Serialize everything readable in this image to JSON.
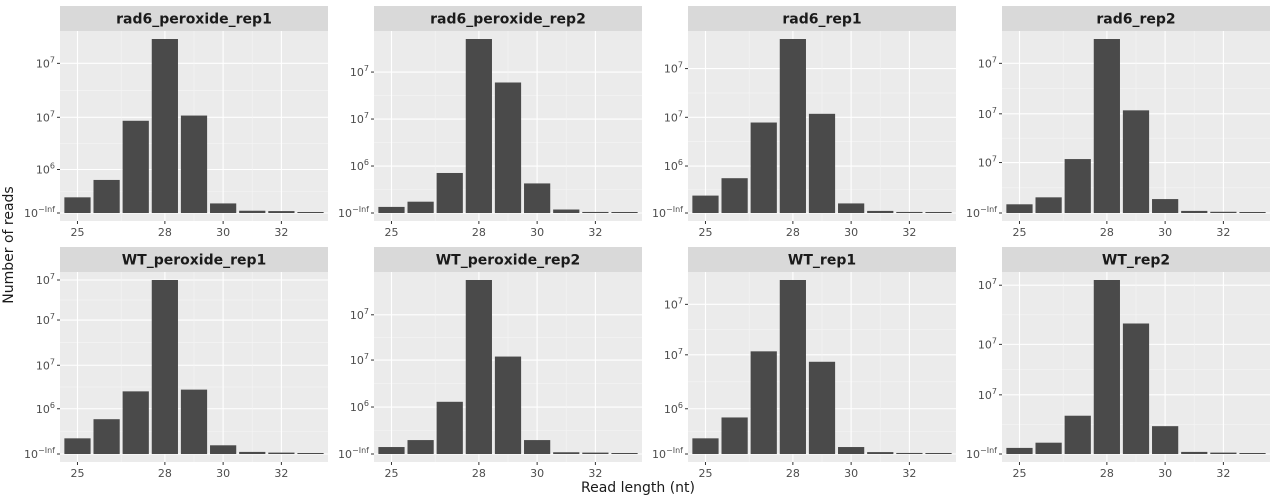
{
  "xlabel": "Read length (nt)",
  "ylabel": "Number of reads",
  "chart_data": {
    "type": "bar",
    "facet_layout": "2 rows x 4 columns",
    "x_categories": [
      25,
      26,
      27,
      28,
      29,
      30,
      31,
      32,
      33
    ],
    "x_ticks": [
      25,
      28,
      30,
      32
    ],
    "x_range": [
      24.4,
      33.6
    ],
    "y_scale": "log (tick labels as printed)",
    "bar_color": "#4a4a4a",
    "panel_background": "#ebebeb",
    "strip_background": "#d9d9d9",
    "grid": true,
    "panels": [
      {
        "title": "rad6_peroxide_rep1",
        "y_ticks": [
          {
            "label": "10^−Inf",
            "pos": 0.0
          },
          {
            "label": "10^6",
            "pos": 0.25
          },
          {
            "label": "10^7",
            "pos": 0.55
          },
          {
            "label": "10^7",
            "pos": 0.86
          }
        ],
        "values": [
          0.09,
          0.19,
          0.53,
          1.0,
          0.56,
          0.055,
          0.013,
          0.011,
          0.005
        ]
      },
      {
        "title": "rad6_peroxide_rep2",
        "y_ticks": [
          {
            "label": "10^−Inf",
            "pos": 0.0
          },
          {
            "label": "10^6",
            "pos": 0.27
          },
          {
            "label": "10^7",
            "pos": 0.54
          },
          {
            "label": "10^7",
            "pos": 0.81
          }
        ],
        "values": [
          0.035,
          0.065,
          0.23,
          1.0,
          0.75,
          0.17,
          0.02,
          0.006,
          0.004
        ]
      },
      {
        "title": "rad6_rep1",
        "y_ticks": [
          {
            "label": "10^−Inf",
            "pos": 0.0
          },
          {
            "label": "10^6",
            "pos": 0.27
          },
          {
            "label": "10^7",
            "pos": 0.55
          },
          {
            "label": "10^7",
            "pos": 0.83
          }
        ],
        "values": [
          0.1,
          0.2,
          0.52,
          1.0,
          0.57,
          0.055,
          0.012,
          0.006,
          0.004
        ]
      },
      {
        "title": "rad6_rep2",
        "y_ticks": [
          {
            "label": "10^−Inf",
            "pos": 0.0
          },
          {
            "label": "10^7",
            "pos": 0.29
          },
          {
            "label": "10^7",
            "pos": 0.57
          },
          {
            "label": "10^7",
            "pos": 0.86
          }
        ],
        "values": [
          0.05,
          0.09,
          0.31,
          1.0,
          0.59,
          0.08,
          0.012,
          0.007,
          0.005
        ]
      },
      {
        "title": "WT_peroxide_rep1",
        "y_ticks": [
          {
            "label": "10^−Inf",
            "pos": 0.0
          },
          {
            "label": "10^6",
            "pos": 0.26
          },
          {
            "label": "10^7",
            "pos": 0.51
          },
          {
            "label": "10^7",
            "pos": 0.77
          },
          {
            "label": "10^7",
            "pos": 1.0
          }
        ],
        "values": [
          0.09,
          0.2,
          0.36,
          1.0,
          0.37,
          0.05,
          0.012,
          0.008,
          0.005
        ]
      },
      {
        "title": "WT_peroxide_rep2",
        "y_ticks": [
          {
            "label": "10^−Inf",
            "pos": 0.0
          },
          {
            "label": "10^6",
            "pos": 0.27
          },
          {
            "label": "10^7",
            "pos": 0.54
          },
          {
            "label": "10^7",
            "pos": 0.8
          }
        ],
        "values": [
          0.04,
          0.08,
          0.3,
          1.0,
          0.56,
          0.08,
          0.01,
          0.008,
          0.005
        ]
      },
      {
        "title": "WT_rep1",
        "y_ticks": [
          {
            "label": "10^−Inf",
            "pos": 0.0
          },
          {
            "label": "10^6",
            "pos": 0.26
          },
          {
            "label": "10^7",
            "pos": 0.57
          },
          {
            "label": "10^7",
            "pos": 0.86
          }
        ],
        "values": [
          0.09,
          0.21,
          0.59,
          1.0,
          0.53,
          0.04,
          0.011,
          0.006,
          0.004
        ]
      },
      {
        "title": "WT_rep2",
        "y_ticks": [
          {
            "label": "10^−Inf",
            "pos": 0.0
          },
          {
            "label": "10^7",
            "pos": 0.34
          },
          {
            "label": "10^7",
            "pos": 0.63
          },
          {
            "label": "10^7",
            "pos": 0.97
          }
        ],
        "values": [
          0.035,
          0.065,
          0.22,
          1.0,
          0.75,
          0.16,
          0.012,
          0.008,
          0.005
        ]
      }
    ]
  }
}
